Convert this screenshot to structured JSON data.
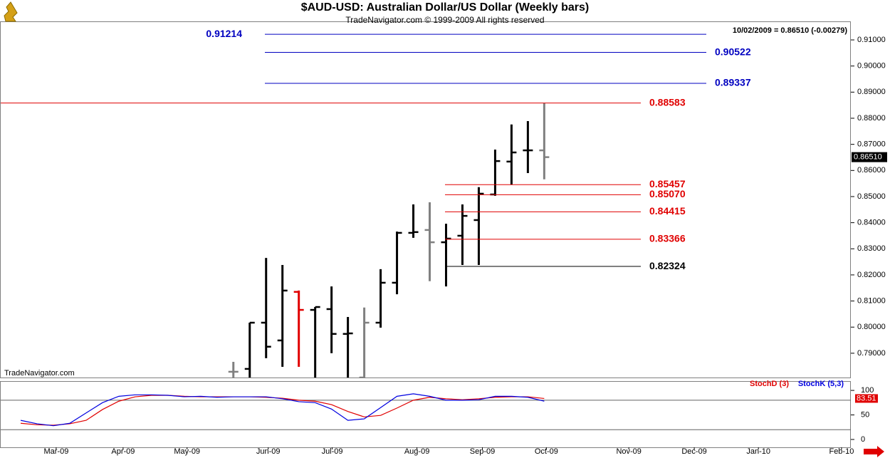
{
  "chart_data": [
    {
      "type": "ohlc",
      "title": "$AUD-USD:  Australian Dollar/US Dollar  (Weekly bars)",
      "subtitle": "TradeNavigator.com © 1999-2009 All rights reserved",
      "watermark": "TradeNavigator.com",
      "info": "10/02/2009 = 0.86510 (-0.00279)",
      "last_price": {
        "value": 0.8651,
        "label": "0.86510"
      },
      "x": [
        0,
        1,
        2,
        3,
        4,
        5,
        6,
        7,
        8,
        9,
        10,
        11,
        12,
        13,
        14,
        15,
        16,
        17,
        18,
        19
      ],
      "open": [
        0.7829,
        0.784,
        0.8017,
        0.7949,
        0.8135,
        0.8066,
        0.8069,
        0.7974,
        0.7807,
        0.8017,
        0.817,
        0.8361,
        0.8372,
        0.8325,
        0.835,
        0.841,
        0.8508,
        0.8634,
        0.8677,
        0.8677
      ],
      "high": [
        0.7867,
        0.8017,
        0.8265,
        0.8238,
        0.814,
        0.8077,
        0.8156,
        0.8039,
        0.8075,
        0.8222,
        0.8366,
        0.847,
        0.8478,
        0.8396,
        0.847,
        0.8536,
        0.868,
        0.8776,
        0.8789,
        0.8858
      ],
      "low": [
        0.7802,
        0.7802,
        0.7881,
        0.7848,
        0.7848,
        0.7807,
        0.79,
        0.7807,
        0.7807,
        0.7998,
        0.8126,
        0.8342,
        0.8176,
        0.8156,
        0.8238,
        0.8238,
        0.8503,
        0.8546,
        0.859,
        0.8566
      ],
      "close": [
        0.7829,
        0.8017,
        0.7925,
        0.814,
        0.8066,
        0.8077,
        0.7974,
        0.7976,
        0.8017,
        0.817,
        0.8361,
        0.8364,
        0.8325,
        0.8339,
        0.8426,
        0.8511,
        0.8636,
        0.8669,
        0.8677,
        0.8651
      ],
      "colors": [
        "#808080",
        "#000000",
        "#000000",
        "#000000",
        "#e00000",
        "#000000",
        "#000000",
        "#000000",
        "#808080",
        "#000000",
        "#000000",
        "#000000",
        "#808080",
        "#000000",
        "#000000",
        "#000000",
        "#000000",
        "#000000",
        "#000000",
        "#808080"
      ],
      "levels": [
        {
          "value": 0.91214,
          "label": "0.91214",
          "color": "#0000c0"
        },
        {
          "value": 0.90522,
          "label": "0.90522",
          "color": "#0000c0"
        },
        {
          "value": 0.89337,
          "label": "0.89337",
          "color": "#0000c0"
        },
        {
          "value": 0.88583,
          "label": "0.88583",
          "color": "#e00000"
        },
        {
          "value": 0.85457,
          "label": "0.85457",
          "color": "#e00000"
        },
        {
          "value": 0.8507,
          "label": "0.85070",
          "color": "#e00000"
        },
        {
          "value": 0.84415,
          "label": "0.84415",
          "color": "#e00000"
        },
        {
          "value": 0.83366,
          "label": "0.83366",
          "color": "#e00000"
        },
        {
          "value": 0.82324,
          "label": "0.82324",
          "color": "#000000"
        }
      ],
      "xlim": [
        -14.22,
        37.74
      ],
      "ylim": [
        0.7807,
        0.9171
      ],
      "yticks": [
        {
          "value": 0.79,
          "label": "0.79000"
        },
        {
          "value": 0.8,
          "label": "0.80000"
        },
        {
          "value": 0.81,
          "label": "0.81000"
        },
        {
          "value": 0.82,
          "label": "0.82000"
        },
        {
          "value": 0.83,
          "label": "0.83000"
        },
        {
          "value": 0.84,
          "label": "0.84000"
        },
        {
          "value": 0.85,
          "label": "0.85000"
        },
        {
          "value": 0.86,
          "label": "0.86000"
        },
        {
          "value": 0.87,
          "label": "0.87000"
        },
        {
          "value": 0.88,
          "label": "0.88000"
        },
        {
          "value": 0.89,
          "label": "0.89000"
        },
        {
          "value": 0.9,
          "label": "0.90000"
        },
        {
          "value": 0.91,
          "label": "0.91000"
        }
      ]
    },
    {
      "type": "line",
      "x": [
        -13,
        -12,
        -11,
        -10,
        -9,
        -8,
        -7,
        -6,
        -5,
        -4,
        -3,
        -2,
        -1,
        0,
        1,
        2,
        3,
        4,
        5,
        6,
        7,
        8,
        9,
        10,
        11,
        12,
        13,
        14,
        15,
        16,
        17,
        18,
        19
      ],
      "series": [
        {
          "name": "StochD (3)",
          "color": "#e00000",
          "values": [
            33,
            30,
            29,
            32,
            39,
            61,
            78,
            87,
            90,
            90,
            88,
            87,
            87,
            87,
            87,
            86,
            84,
            80,
            78,
            71,
            57,
            46,
            49,
            64,
            80,
            86,
            83,
            81,
            83,
            86,
            87,
            87,
            83.51
          ]
        },
        {
          "name": "StochK (5,3)",
          "color": "#0000e0",
          "values": [
            39,
            32,
            28,
            33,
            54,
            75,
            88,
            91,
            91,
            90,
            87,
            88,
            86,
            87,
            87,
            87,
            83,
            77,
            75,
            62,
            39,
            42,
            65,
            88,
            93,
            88,
            80,
            80,
            81,
            88,
            88,
            86,
            78
          ]
        }
      ],
      "last_label": {
        "value": 83.51,
        "label": "83.51"
      },
      "reference_lines": [
        20,
        80
      ],
      "xlim": [
        -14.22,
        37.74
      ],
      "ylim": [
        -16,
        119
      ],
      "yticks": [
        0,
        50,
        100
      ],
      "xticks": [
        {
          "value": -10.83,
          "label": "Mar-09"
        },
        {
          "value": -6.74,
          "label": "Apr-09"
        },
        {
          "value": -2.83,
          "label": "May-09"
        },
        {
          "value": 2.13,
          "label": "Jun-09"
        },
        {
          "value": 6.04,
          "label": "Jul-09"
        },
        {
          "value": 11.22,
          "label": "Aug-09"
        },
        {
          "value": 15.22,
          "label": "Sep-09"
        },
        {
          "value": 19.13,
          "label": "Oct-09"
        },
        {
          "value": 24.17,
          "label": "Nov-09"
        },
        {
          "value": 28.17,
          "label": "Dec-09"
        },
        {
          "value": 32.09,
          "label": "Jan-10"
        },
        {
          "value": 37.17,
          "label": "Feb-10"
        }
      ]
    }
  ]
}
